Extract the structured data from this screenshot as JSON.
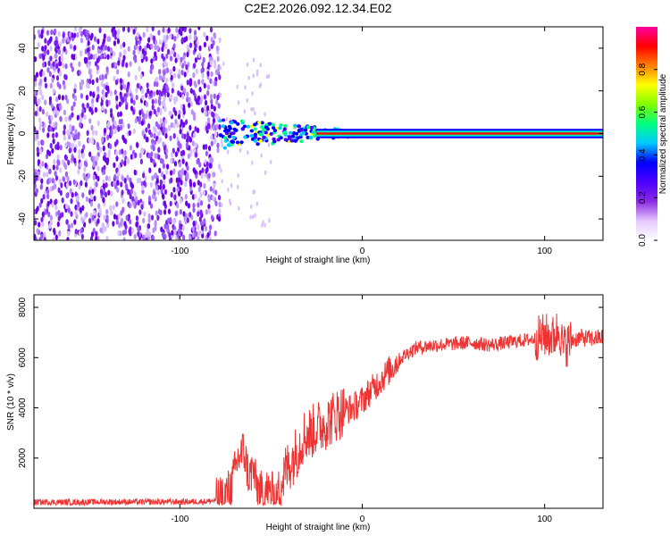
{
  "title": "C2E2.2026.092.12.34.E02",
  "chart_data": [
    {
      "type": "heatmap",
      "xlabel": "Height of straight line (km)",
      "ylabel": "Frequency (Hz)",
      "xlim": [
        -180,
        132
      ],
      "ylim": [
        -50,
        50
      ],
      "xticks": [
        -100,
        0,
        100
      ],
      "xtick_labels": [
        "-100",
        "0",
        "100"
      ],
      "yticks": [
        -40,
        -20,
        0,
        20,
        40
      ],
      "ytick_labels": [
        "-40",
        "-20",
        "0",
        "20",
        "40"
      ],
      "noise_region_end_km": -78,
      "signal_line_freq_hz": 0,
      "colorbar": {
        "label": "Normalized spectral amplitude",
        "range": [
          0,
          1
        ],
        "ticks": [
          0,
          0.2,
          0.4,
          0.6,
          0.8
        ],
        "tick_labels": [
          "0.0",
          "0.2",
          "0.4",
          "0.6",
          "0.8"
        ],
        "colors": [
          "#ffffff",
          "#e6c8ff",
          "#8a2be2",
          "#4b00ff",
          "#0000ff",
          "#00c8ff",
          "#00ff80",
          "#80ff00",
          "#ffff00",
          "#ff8000",
          "#ff0000",
          "#ff00a0"
        ]
      }
    },
    {
      "type": "line",
      "xlabel": "Height of straight line (km)",
      "ylabel": "SNR (10 * v/v)",
      "xlim": [
        -180,
        132
      ],
      "ylim": [
        0,
        8500
      ],
      "xticks": [
        -100,
        0,
        100
      ],
      "xtick_labels": [
        "-100",
        "0",
        "100"
      ],
      "yticks": [
        2000,
        4000,
        6000,
        8000
      ],
      "ytick_labels": [
        "2000",
        "4000",
        "6000",
        "8000"
      ],
      "color": "#ee3333",
      "series": [
        {
          "name": "SNR",
          "x": [
            -180,
            -160,
            -140,
            -120,
            -100,
            -85,
            -78,
            -72,
            -68,
            -65,
            -62,
            -60,
            -58,
            -55,
            -52,
            -48,
            -45,
            -42,
            -38,
            -35,
            -32,
            -28,
            -25,
            -22,
            -18,
            -15,
            -10,
            -5,
            0,
            5,
            10,
            15,
            20,
            25,
            30,
            40,
            50,
            60,
            70,
            80,
            90,
            95,
            100,
            105,
            108,
            110,
            115,
            120,
            125,
            132
          ],
          "y": [
            250,
            240,
            260,
            250,
            260,
            270,
            350,
            800,
            2000,
            2300,
            1200,
            1600,
            900,
            600,
            700,
            500,
            800,
            1500,
            2000,
            2400,
            2900,
            3000,
            3200,
            3300,
            3500,
            3700,
            3900,
            4000,
            4300,
            4700,
            5100,
            5500,
            5900,
            6200,
            6400,
            6500,
            6550,
            6600,
            6500,
            6600,
            6700,
            6750,
            6900,
            6800,
            7200,
            6400,
            6700,
            6800,
            6750,
            6800
          ]
        }
      ]
    }
  ]
}
